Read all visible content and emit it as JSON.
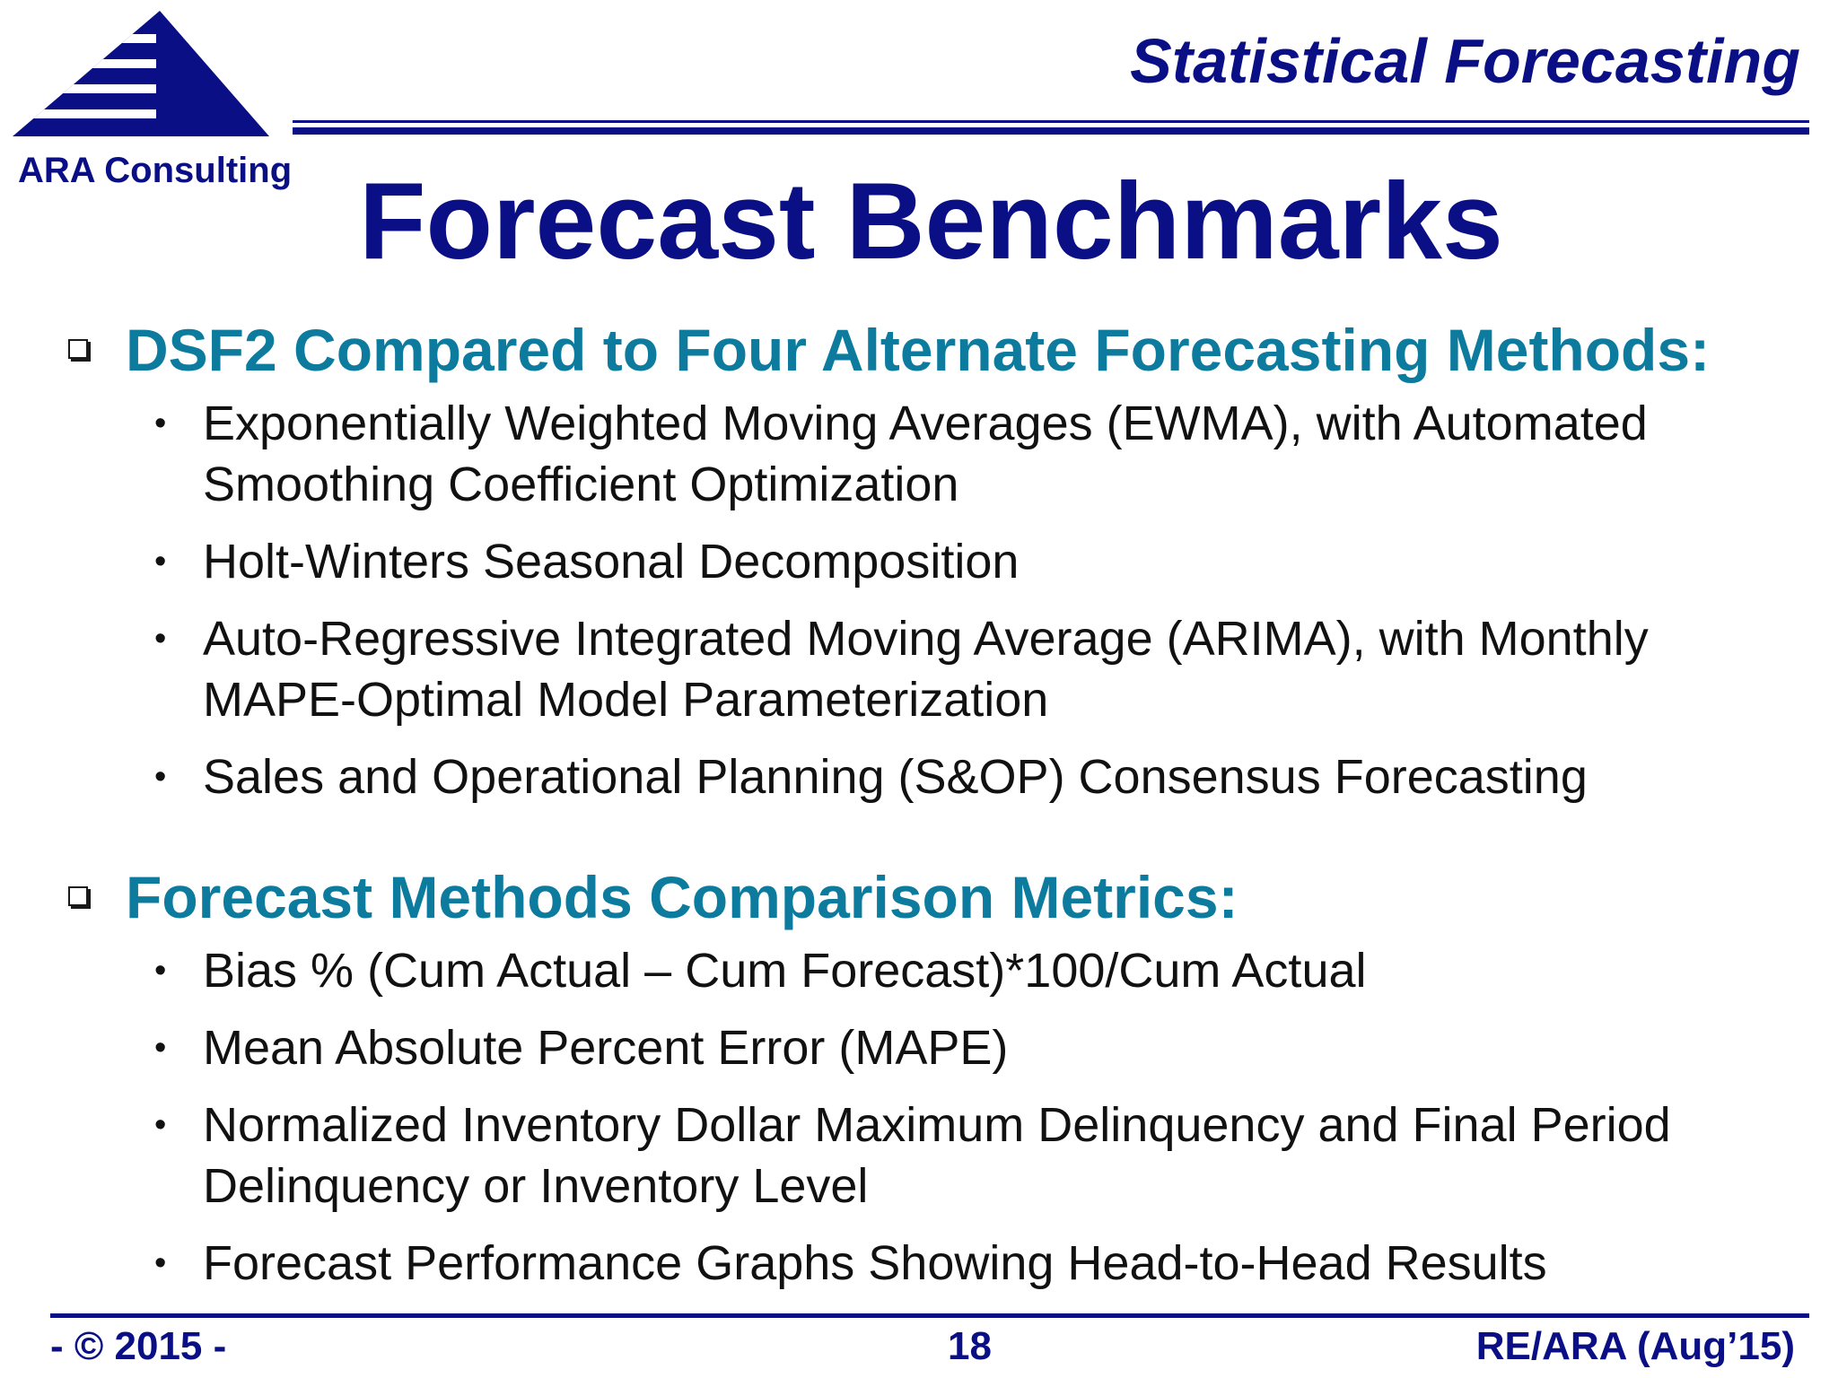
{
  "logo": {
    "text": "ARA Consulting",
    "icon": "triangle-stripes-logo"
  },
  "header": {
    "title": "Statistical Forecasting"
  },
  "slide_title": "Forecast Benchmarks",
  "sections": [
    {
      "title": "DSF2 Compared to Four Alternate Forecasting Methods:",
      "bullets": [
        "Exponentially Weighted Moving Averages (EWMA), with Automated Smoothing Coefficient Optimization",
        "Holt-Winters Seasonal Decomposition",
        "Auto-Regressive Integrated Moving Average (ARIMA), with Monthly MAPE-Optimal Model Parameterization",
        "Sales and Operational Planning (S&OP) Consensus Forecasting"
      ]
    },
    {
      "title": "Forecast Methods Comparison Metrics:",
      "bullets": [
        "Bias % (Cum Actual – Cum Forecast)*100/Cum Actual",
        "Mean Absolute Percent Error (MAPE)",
        "Normalized Inventory Dollar  Maximum Delinquency and Final Period Delinquency or Inventory Level",
        "Forecast Performance Graphs Showing Head-to-Head Results"
      ]
    }
  ],
  "footer": {
    "left": "- © 2015 -",
    "page_number": "18",
    "right": "RE/ARA (Aug’15)"
  },
  "colors": {
    "navy": "#0a0f85",
    "teal": "#0d7b9e",
    "text": "#111111"
  }
}
